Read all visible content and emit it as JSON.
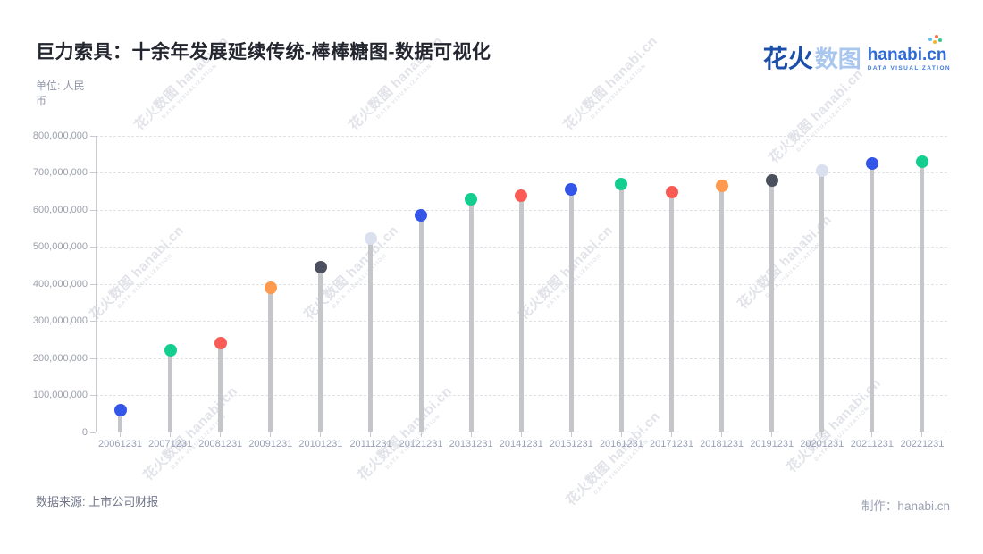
{
  "page": {
    "title": "巨力索具：十余年发展延续传统-棒棒糖图-数据可视化",
    "unit_label": "单位: 人民币"
  },
  "logo": {
    "brand_cn_1": "花火",
    "brand_cn_2": "数图",
    "domain": "hanabi.cn",
    "tagline": "DATA VISUALIZATION"
  },
  "watermark": {
    "line1": "花火数图 hanabi.cn",
    "line2": "DATA VISUALIZATION"
  },
  "footer": {
    "source": "数据来源: 上市公司财报",
    "credit": "制作：hanabi.cn"
  },
  "chart_data": {
    "type": "lollipop",
    "title": "巨力索具：十余年发展延续传统-棒棒糖图-数据可视化",
    "unit": "人民币",
    "categories": [
      "20061231",
      "20071231",
      "20081231",
      "20091231",
      "20101231",
      "20111231",
      "20121231",
      "20131231",
      "20141231",
      "20151231",
      "20161231",
      "20171231",
      "20181231",
      "20191231",
      "20201231",
      "20211231",
      "20221231"
    ],
    "values": [
      60000000,
      220000000,
      240000000,
      389000000,
      445000000,
      523000000,
      585000000,
      628000000,
      638000000,
      656000000,
      670000000,
      647000000,
      665000000,
      679000000,
      707000000,
      724000000,
      730000000
    ],
    "point_colors": [
      "#3355E8",
      "#14CE8F",
      "#FB5B55",
      "#FD9A4D",
      "#4C505E",
      "#DBE0EF",
      "#3355E8",
      "#14CE8F",
      "#FB5B55",
      "#3355E8",
      "#14CE8F",
      "#FB5B55",
      "#FD9A4D",
      "#4C505E",
      "#DBE0EF",
      "#3355E8",
      "#14CE8F"
    ],
    "stick_color": "#C5C6CA",
    "ylim": [
      0,
      800000000
    ],
    "y_tick_interval": 100000000,
    "y_tick_labels": [
      "0",
      "100,000,000",
      "200,000,000",
      "300,000,000",
      "400,000,000",
      "500,000,000",
      "600,000,000",
      "700,000,000",
      "800,000,000"
    ],
    "xlabel": "",
    "ylabel": "",
    "grid": "horizontal-dashed",
    "legend": "none"
  }
}
